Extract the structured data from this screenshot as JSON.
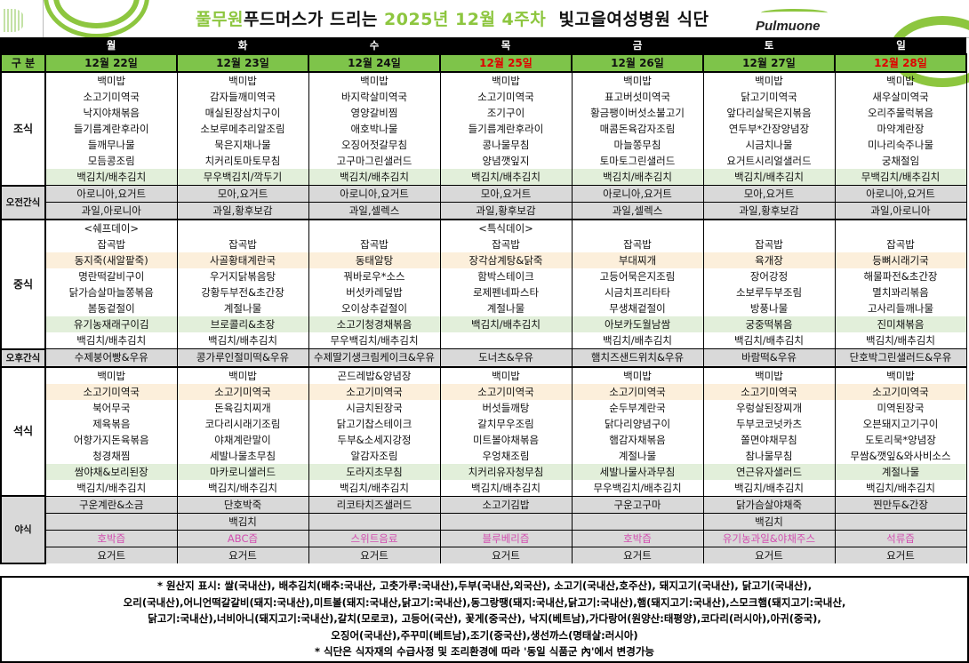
{
  "header": {
    "title_parts": [
      "풀무원",
      "푸드머스가 드리는",
      "2025년  12월 4주차",
      "빛고을여성병원 식단"
    ],
    "logo_text": "Pulmuone",
    "brand_color": "#8dc63f"
  },
  "table": {
    "category_label": "구 분",
    "days": [
      "월",
      "화",
      "수",
      "목",
      "금",
      "토",
      "일"
    ],
    "dates": [
      "12월 22일",
      "12월 23일",
      "12월 24일",
      "12월 25일",
      "12월 26일",
      "12월 27일",
      "12월 28일"
    ],
    "holiday_dates": [
      3,
      6
    ],
    "holiday_color": "#e00000",
    "meals": [
      {
        "label": "조식",
        "rows": [
          [
            "백미밥",
            "백미밥",
            "백미밥",
            "백미밥",
            "백미밥",
            "백미밥",
            "백미밥"
          ],
          [
            "소고기미역국",
            "감자들깨미역국",
            "바지락살미역국",
            "소고기미역국",
            "표고버섯미역국",
            "닭고기미역국",
            "새우살미역국"
          ],
          [
            "낙지야채볶음",
            "매실된장삼치구이",
            "영양갈비찜",
            "조기구이",
            "황금팽이버섯소불고기",
            "앞다리살묵은지볶음",
            "오리주물럭볶음"
          ],
          [
            "들기름계란후라이",
            "소보루메추리알조림",
            "애호박나물",
            "들기름계란후라이",
            "매콤돈육감자조림",
            "연두부*간장양념장",
            "마약계란장"
          ],
          [
            "들깨무나물",
            "묵은지채나물",
            "오징어젓갈무침",
            "콩나물무침",
            "마늘쫑무침",
            "시금치나물",
            "미나리숙주나물"
          ],
          [
            "모듬콩조림",
            "치커리토마토무침",
            "고구마그린샐러드",
            "양념깻잎지",
            "토마토그린샐러드",
            "요거트시리얼샐러드",
            "궁채절임"
          ],
          [
            "백김치/배추김치",
            "무우백김치/깍두기",
            "백김치/배추김치",
            "백김치/배추김치",
            "백김치/배추김치",
            "백김치/배추김치",
            "무백김치/배추김치"
          ]
        ]
      },
      {
        "label": "오전간식",
        "rows": [
          [
            "아로니아,요거트",
            "모아,요거트",
            "아로니아,요거트",
            "모아,요거트",
            "아로니아,요거트",
            "모아,요거트",
            "아로니아,요거트"
          ],
          [
            "과일,아로니아",
            "과일,황후보감",
            "과일,셀렉스",
            "과일,황후보감",
            "과일,셀렉스",
            "과일,황후보감",
            "과일,아로니아"
          ]
        ]
      },
      {
        "label": "중식",
        "rows": [
          [
            "<쉐프데이>",
            "",
            "",
            "<특식데이>",
            "",
            "",
            ""
          ],
          [
            "잡곡밥",
            "잡곡밥",
            "잡곡밥",
            "잡곡밥",
            "잡곡밥",
            "잡곡밥",
            "잡곡밥"
          ],
          [
            "동지죽(새알팥죽)",
            "사골황태계란국",
            "동태알탕",
            "장각삼계탕&닭죽",
            "부대찌개",
            "육개장",
            "등뼈시래기국"
          ],
          [
            "명란떡갈비구이",
            "우거지닭볶음탕",
            "꿔바로우*소스",
            "함박스테이크",
            "고등어묵은지조림",
            "장어강정",
            "해물파전&초간장"
          ],
          [
            "닭가슴살마늘쫑볶음",
            "강황두부전&초간장",
            "버섯카레덮밥",
            "로제펜네파스타",
            "시금치프리타타",
            "소보루두부조림",
            "멸치꽈리볶음"
          ],
          [
            "봄동겉절이",
            "계절나물",
            "오이상추겉절이",
            "계절나물",
            "무생채겉절이",
            "방풍나물",
            "고사리들깨나물"
          ],
          [
            "유기농재래구이김",
            "브로콜리&초장",
            "소고기청경채볶음",
            "백김치/배추김치",
            "아보카도월남쌈",
            "궁중떡볶음",
            "진미채볶음"
          ],
          [
            "백김치/배추김치",
            "백김치/배추김치",
            "무우백김치/배추김치",
            "",
            "백김치/배추김치",
            "백김치/배추김치",
            "백김치/배추김치"
          ]
        ]
      },
      {
        "label": "오후간식",
        "rows": [
          [
            "수제붕어빵&우유",
            "콩가루인절미떡&우유",
            "수제딸기생크림케이크&우유",
            "도너츠&우유",
            "햄치즈샌드위치&우유",
            "바람떡&우유",
            "단호박그린샐러드&우유"
          ]
        ]
      },
      {
        "label": "석식",
        "rows": [
          [
            "백미밥",
            "백미밥",
            "곤드레밥&양념장",
            "백미밥",
            "백미밥",
            "백미밥",
            "백미밥"
          ],
          [
            "소고기미역국",
            "소고기미역국",
            "소고기미역국",
            "소고기미역국",
            "소고기미역국",
            "소고기미역국",
            "소고기미역국"
          ],
          [
            "북어무국",
            "돈육김치찌개",
            "시금치된장국",
            "버섯들깨탕",
            "순두부계란국",
            "우렁살된장찌개",
            "미역된장국"
          ],
          [
            "제육볶음",
            "코다리시래기조림",
            "닭고기찹스테이크",
            "갈치무우조림",
            "닭다리양념구이",
            "두부코코넛카츠",
            "오븐돼지고기구이"
          ],
          [
            "어향가지돈육볶음",
            "야채계란말이",
            "두부&소세지강정",
            "미트볼야채볶음",
            "햄감자채볶음",
            "쫄면야채무침",
            "도토리묵*양념장"
          ],
          [
            "청경채찜",
            "세발나물초무침",
            "알감자조림",
            "우엉채조림",
            "계절나물",
            "참나물무침",
            "무쌈&깻잎&와사비소스"
          ],
          [
            "쌈야채&보리된장",
            "마카로니샐러드",
            "도라지초무침",
            "치커리유자청무침",
            "세발나물사과무침",
            "연근유자샐러드",
            "계절나물"
          ],
          [
            "백김치/배추김치",
            "백김치/배추김치",
            "백김치/배추김치",
            "백김치/배추김치",
            "무우백김치/배추김치",
            "백김치/배추김치",
            "백김치/배추김치"
          ]
        ]
      },
      {
        "label": "야식",
        "rows": [
          [
            "구운계란&소금",
            "단호박죽",
            "리코타치즈샐러드",
            "소고기김밥",
            "구운고구마",
            "닭가슴살야채죽",
            "찐만두&간장"
          ],
          [
            "",
            "백김치",
            "",
            "",
            "",
            "백김치",
            ""
          ],
          [
            "호박즙",
            "ABC즙",
            "스위트음료",
            "블루베리즙",
            "호박즙",
            "유기농과일&야채주스",
            "석류즙"
          ],
          [
            "요거트",
            "요거트",
            "요거트",
            "요거트",
            "요거트",
            "요거트",
            "요거트"
          ]
        ]
      }
    ],
    "juice_color": "#d24fb0"
  },
  "footer": {
    "lines": [
      "* 원산지 표시: 쌀(국내산), 배추김치(배추:국내산, 고춧가루:국내산),두부(국내산,외국산), 소고기(국내산,호주산), 돼지고기(국내산), 닭고기(국내산),",
      "오리(국내산),어니언떡갈갈비(돼지:국내산),미트볼(돼지:국내산,닭고기:국내산),동그랑땡(돼지:국내산,닭고기:국내산),햄(돼지고기:국내산),스모크햄(돼지고기:국내산,",
      "닭고기:국내산),너비아니(돼지고기:국내산),갈치(모로코), 고등어(국산), 꽃게(중국산), 낙지(베트남),가다랑어(원양산:태평양),코다리(러시아),아귀(중국),",
      "오징어(국내산),주꾸미(베트남),조기(중국산),생선까스(명태살:러시아)",
      "* 식단은 식자재의 수급사정 및 조리환경에 따라 '동일 식품군 內'에서 변경가능"
    ]
  }
}
